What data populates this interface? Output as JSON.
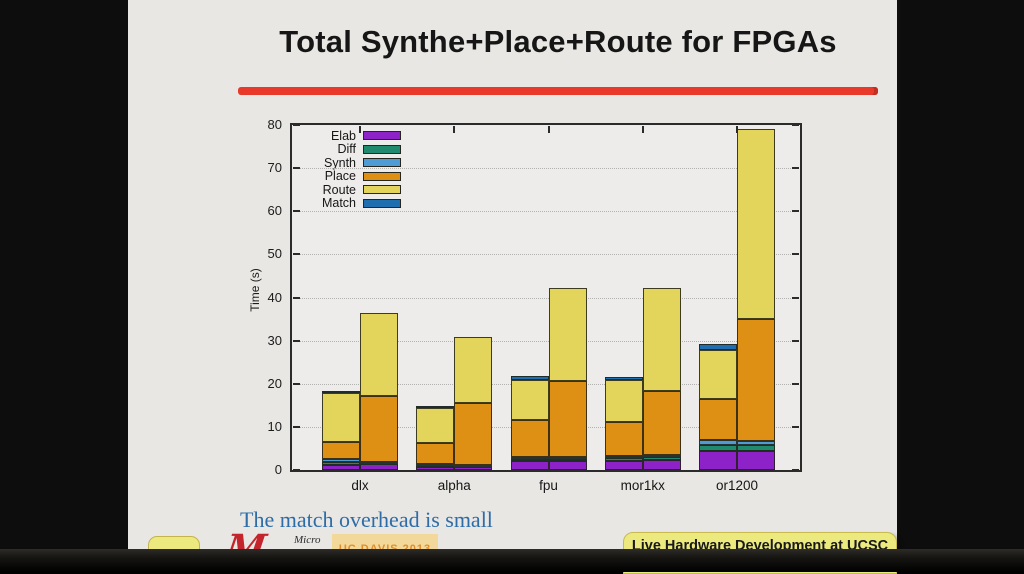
{
  "slide": {
    "title": "Total Synthe+Place+Route for FPGAs",
    "accent_color": "#e8392a",
    "caption": "The match overhead is small",
    "caption_color": "#2e6ca8"
  },
  "footer": {
    "logo_letter": "M",
    "logo_text": "Micro",
    "stamp_text": "UC DAVIS 2013",
    "banner_text": "Live Hardware Development at UCSC"
  },
  "chart_data": {
    "type": "bar",
    "stacked": true,
    "title": "",
    "xlabel": "",
    "ylabel": "Time (s)",
    "ylim": [
      0,
      80
    ],
    "yticks": [
      0,
      10,
      20,
      30,
      40,
      50,
      60,
      70,
      80
    ],
    "grid": "dotted-horizontal",
    "legend_position": "top-left-inside",
    "legend": [
      "Elab",
      "Diff",
      "Synth",
      "Place",
      "Route",
      "Match"
    ],
    "colors": {
      "Elab": "#8e22c9",
      "Diff": "#1f8a6e",
      "Synth": "#4f9bd5",
      "Place": "#de9015",
      "Route": "#e3d45b",
      "Match": "#1f6eb0"
    },
    "categories": [
      "dlx",
      "alpha",
      "fpu",
      "mor1kx",
      "or1200"
    ],
    "bars_per_category": 2,
    "bars": [
      {
        "category": "dlx",
        "bar": 1,
        "stack": [
          1.2,
          0.6,
          0.7,
          4.1,
          11.3,
          0.5
        ],
        "total": 18.4
      },
      {
        "category": "dlx",
        "bar": 2,
        "stack": [
          1.3,
          0.3,
          0.2,
          15.4,
          19.3,
          0
        ],
        "total": 36.5
      },
      {
        "category": "alpha",
        "bar": 1,
        "stack": [
          0.8,
          0.3,
          0.4,
          4.8,
          8.1,
          0.4
        ],
        "total": 14.8
      },
      {
        "category": "alpha",
        "bar": 2,
        "stack": [
          0.7,
          0.3,
          0.2,
          14.3,
          15.4,
          0
        ],
        "total": 30.9
      },
      {
        "category": "fpu",
        "bar": 1,
        "stack": [
          2.0,
          0.5,
          0.6,
          8.5,
          9.3,
          0.8
        ],
        "total": 21.7
      },
      {
        "category": "fpu",
        "bar": 2,
        "stack": [
          2.0,
          0.5,
          0.5,
          17.6,
          21.6,
          0
        ],
        "total": 42.2
      },
      {
        "category": "mor1kx",
        "bar": 1,
        "stack": [
          2.2,
          0.5,
          0.6,
          7.9,
          9.7,
          0.7
        ],
        "total": 21.6
      },
      {
        "category": "mor1kx",
        "bar": 2,
        "stack": [
          2.4,
          0.5,
          0.6,
          14.8,
          24.0,
          0
        ],
        "total": 42.3
      },
      {
        "category": "or1200",
        "bar": 1,
        "stack": [
          4.4,
          1.3,
          1.2,
          9.6,
          11.4,
          1.3
        ],
        "total": 29.2
      },
      {
        "category": "or1200",
        "bar": 2,
        "stack": [
          4.4,
          1.3,
          1.1,
          28.3,
          43.9,
          0
        ],
        "total": 79.0
      }
    ]
  }
}
